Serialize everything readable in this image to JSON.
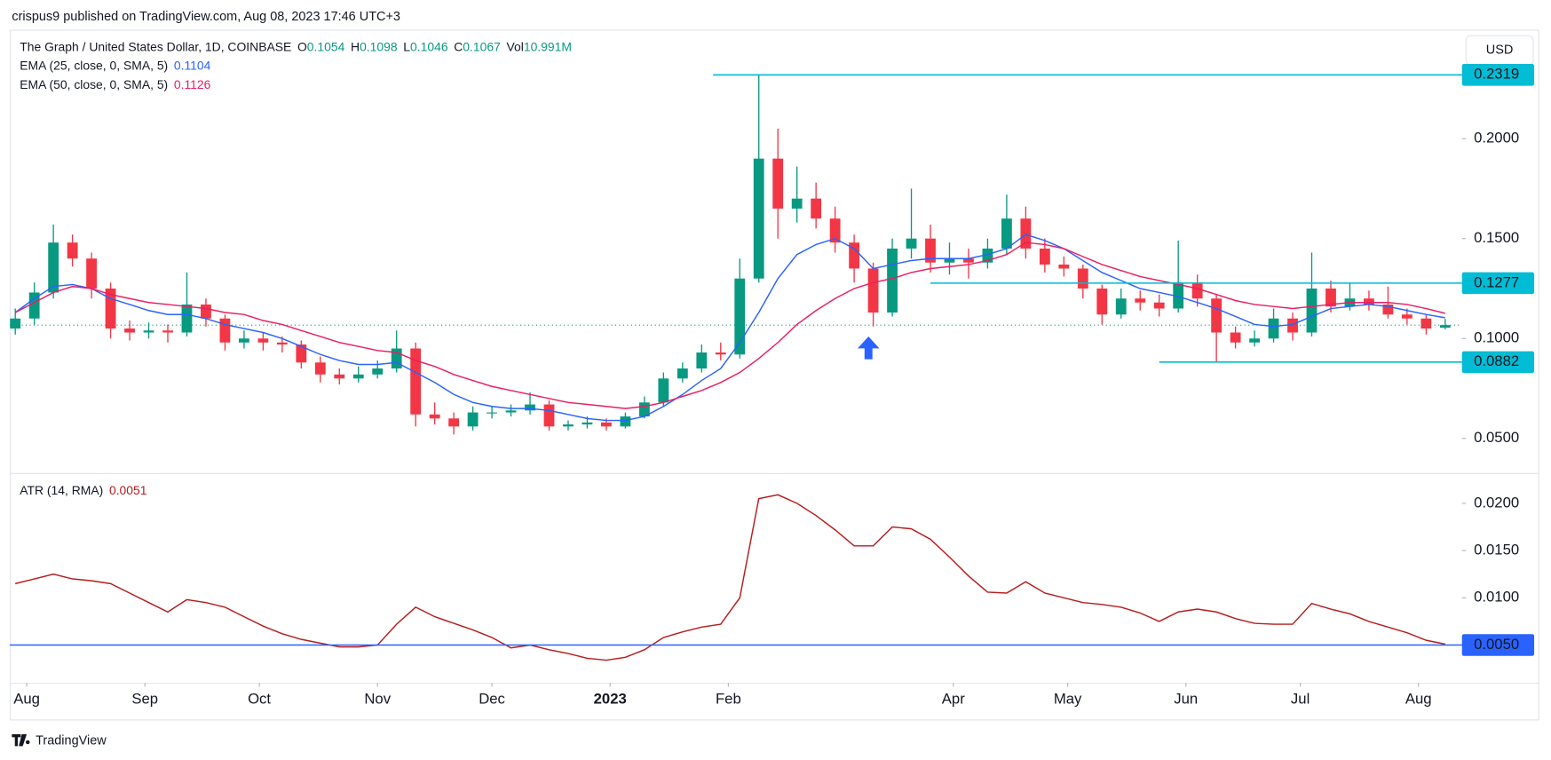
{
  "header": {
    "published": "crispus9 published on TradingView.com, Aug 08, 2023 17:46 UTC+3",
    "currency": "USD"
  },
  "footer": {
    "brand": "TradingView"
  },
  "chart_data": [
    {
      "type": "candlestick",
      "title": "The Graph / United States Dollar, 1D, COINBASE",
      "ohlc_labels": [
        "O",
        "H",
        "L",
        "C",
        "Vol"
      ],
      "volume": "10.991M",
      "up_color": "#089981",
      "down_color": "#f23645",
      "x": [
        -3,
        2,
        7,
        12,
        17,
        22,
        27,
        32,
        37,
        42,
        47,
        52,
        57,
        62,
        67,
        72,
        77,
        82,
        87,
        92,
        97,
        102,
        107,
        112,
        117,
        122,
        127,
        132,
        137,
        142,
        147,
        152,
        157,
        162,
        167,
        172,
        177,
        182,
        187,
        192,
        197,
        202,
        207,
        212,
        217,
        222,
        227,
        232,
        237,
        242,
        247,
        252,
        257,
        262,
        267,
        272,
        277,
        282,
        287,
        292,
        297,
        302,
        307,
        312,
        317,
        322,
        327,
        332,
        337,
        342,
        347,
        352,
        357,
        362,
        367,
        372
      ],
      "open": [
        0.105,
        0.11,
        0.123,
        0.148,
        0.14,
        0.125,
        0.105,
        0.103,
        0.104,
        0.103,
        0.117,
        0.11,
        0.098,
        0.1,
        0.098,
        0.097,
        0.088,
        0.082,
        0.08,
        0.082,
        0.085,
        0.095,
        0.062,
        0.06,
        0.056,
        0.063,
        0.063,
        0.064,
        0.067,
        0.056,
        0.057,
        0.058,
        0.056,
        0.061,
        0.068,
        0.08,
        0.085,
        0.093,
        0.092,
        0.13,
        0.19,
        0.165,
        0.17,
        0.16,
        0.148,
        0.135,
        0.113,
        0.145,
        0.15,
        0.138,
        0.14,
        0.138,
        0.145,
        0.16,
        0.145,
        0.137,
        0.135,
        0.125,
        0.112,
        0.12,
        0.118,
        0.115,
        0.128,
        0.12,
        0.103,
        0.098,
        0.1,
        0.11,
        0.103,
        0.125,
        0.116,
        0.12,
        0.117,
        0.112,
        0.11,
        0.1054
      ],
      "high": [
        0.115,
        0.128,
        0.157,
        0.152,
        0.143,
        0.128,
        0.109,
        0.108,
        0.107,
        0.133,
        0.12,
        0.112,
        0.104,
        0.103,
        0.101,
        0.099,
        0.091,
        0.085,
        0.086,
        0.089,
        0.104,
        0.098,
        0.068,
        0.063,
        0.066,
        0.066,
        0.067,
        0.073,
        0.069,
        0.059,
        0.061,
        0.06,
        0.063,
        0.071,
        0.083,
        0.088,
        0.097,
        0.098,
        0.14,
        0.2319,
        0.205,
        0.186,
        0.178,
        0.166,
        0.152,
        0.138,
        0.15,
        0.175,
        0.157,
        0.148,
        0.145,
        0.15,
        0.172,
        0.166,
        0.15,
        0.141,
        0.137,
        0.127,
        0.125,
        0.124,
        0.122,
        0.149,
        0.132,
        0.122,
        0.106,
        0.104,
        0.115,
        0.113,
        0.143,
        0.129,
        0.128,
        0.124,
        0.126,
        0.115,
        0.112,
        0.1098
      ],
      "low": [
        0.102,
        0.107,
        0.12,
        0.136,
        0.12,
        0.1,
        0.099,
        0.1,
        0.098,
        0.101,
        0.106,
        0.094,
        0.095,
        0.094,
        0.093,
        0.085,
        0.078,
        0.077,
        0.078,
        0.08,
        0.083,
        0.056,
        0.057,
        0.052,
        0.054,
        0.06,
        0.061,
        0.062,
        0.054,
        0.054,
        0.055,
        0.054,
        0.055,
        0.06,
        0.066,
        0.078,
        0.083,
        0.089,
        0.09,
        0.128,
        0.15,
        0.158,
        0.155,
        0.143,
        0.128,
        0.106,
        0.111,
        0.14,
        0.133,
        0.132,
        0.13,
        0.135,
        0.142,
        0.14,
        0.133,
        0.131,
        0.12,
        0.107,
        0.11,
        0.114,
        0.111,
        0.113,
        0.116,
        0.0882,
        0.095,
        0.096,
        0.098,
        0.099,
        0.101,
        0.113,
        0.114,
        0.114,
        0.11,
        0.107,
        0.102,
        0.1046
      ],
      "close": [
        0.11,
        0.123,
        0.148,
        0.14,
        0.125,
        0.105,
        0.103,
        0.104,
        0.103,
        0.117,
        0.11,
        0.098,
        0.1,
        0.098,
        0.097,
        0.088,
        0.082,
        0.08,
        0.082,
        0.085,
        0.095,
        0.062,
        0.06,
        0.056,
        0.063,
        0.063,
        0.064,
        0.067,
        0.056,
        0.057,
        0.058,
        0.056,
        0.061,
        0.068,
        0.08,
        0.085,
        0.093,
        0.092,
        0.13,
        0.19,
        0.165,
        0.17,
        0.16,
        0.148,
        0.135,
        0.113,
        0.145,
        0.15,
        0.138,
        0.14,
        0.138,
        0.145,
        0.16,
        0.145,
        0.137,
        0.135,
        0.125,
        0.112,
        0.12,
        0.118,
        0.115,
        0.128,
        0.12,
        0.103,
        0.098,
        0.1,
        0.11,
        0.103,
        0.125,
        0.116,
        0.12,
        0.117,
        0.112,
        0.11,
        0.105,
        0.1067
      ],
      "series": [
        {
          "name": "EMA (25, close, 0, SMA, 5)",
          "color": "#2962ff",
          "values": [
            0.113,
            0.12,
            0.126,
            0.127,
            0.125,
            0.12,
            0.117,
            0.114,
            0.112,
            0.112,
            0.11,
            0.107,
            0.105,
            0.103,
            0.1,
            0.096,
            0.092,
            0.089,
            0.087,
            0.087,
            0.088,
            0.083,
            0.078,
            0.072,
            0.068,
            0.066,
            0.065,
            0.065,
            0.064,
            0.062,
            0.06,
            0.059,
            0.059,
            0.061,
            0.066,
            0.072,
            0.079,
            0.085,
            0.098,
            0.113,
            0.13,
            0.142,
            0.147,
            0.15,
            0.145,
            0.135,
            0.137,
            0.139,
            0.14,
            0.14,
            0.14,
            0.142,
            0.145,
            0.152,
            0.149,
            0.145,
            0.139,
            0.133,
            0.129,
            0.125,
            0.123,
            0.121,
            0.118,
            0.115,
            0.111,
            0.107,
            0.106,
            0.107,
            0.111,
            0.115,
            0.116,
            0.117,
            0.116,
            0.114,
            0.112,
            0.1104
          ]
        },
        {
          "name": "EMA (50, close, 0, SMA, 5)",
          "color": "#e91e63",
          "values": [
            0.113,
            0.118,
            0.123,
            0.126,
            0.125,
            0.122,
            0.12,
            0.118,
            0.117,
            0.116,
            0.115,
            0.113,
            0.112,
            0.109,
            0.107,
            0.104,
            0.101,
            0.098,
            0.096,
            0.094,
            0.093,
            0.089,
            0.086,
            0.082,
            0.079,
            0.076,
            0.074,
            0.072,
            0.07,
            0.068,
            0.067,
            0.066,
            0.065,
            0.066,
            0.068,
            0.071,
            0.074,
            0.078,
            0.083,
            0.09,
            0.098,
            0.107,
            0.114,
            0.12,
            0.125,
            0.128,
            0.13,
            0.133,
            0.135,
            0.136,
            0.137,
            0.139,
            0.142,
            0.148,
            0.147,
            0.145,
            0.141,
            0.137,
            0.134,
            0.131,
            0.129,
            0.127,
            0.125,
            0.122,
            0.119,
            0.117,
            0.116,
            0.115,
            0.116,
            0.117,
            0.118,
            0.118,
            0.118,
            0.117,
            0.115,
            0.1126
          ]
        }
      ],
      "xlim": [
        -4.41,
        376.4
      ],
      "xticks": [
        {
          "value": 0,
          "label": "Aug"
        },
        {
          "value": 31,
          "label": "Sep"
        },
        {
          "value": 61,
          "label": "Oct"
        },
        {
          "value": 92,
          "label": "Nov"
        },
        {
          "value": 122,
          "label": "Dec"
        },
        {
          "value": 153,
          "label": "2023"
        },
        {
          "value": 184,
          "label": "Feb"
        },
        {
          "value": 243,
          "label": "Apr"
        },
        {
          "value": 273,
          "label": "May"
        },
        {
          "value": 304,
          "label": "Jun"
        },
        {
          "value": 334,
          "label": "Jul"
        },
        {
          "value": 365,
          "label": "Aug"
        }
      ],
      "ylim": [
        0.0327,
        0.2545
      ],
      "yticks": [
        {
          "value": 0.2,
          "label": "0.2000"
        },
        {
          "value": 0.15,
          "label": "0.1500"
        },
        {
          "value": 0.1,
          "label": "0.1000"
        },
        {
          "value": 0.05,
          "label": "0.0500"
        }
      ],
      "hlines": [
        {
          "value": 0.2319,
          "x_start": 180,
          "color": "#00bcd4"
        },
        {
          "value": 0.1277,
          "x_start": 237,
          "color": "#00bcd4"
        },
        {
          "value": 0.0882,
          "x_start": 297,
          "color": "#00bcd4"
        }
      ]
    },
    {
      "type": "line",
      "series": [
        {
          "name": "ATR (14, RMA)",
          "color": "#b71c1c",
          "values": [
            0.0115,
            0.012,
            0.0125,
            0.012,
            0.0118,
            0.0115,
            0.0105,
            0.0095,
            0.0085,
            0.0098,
            0.0095,
            0.009,
            0.008,
            0.007,
            0.0062,
            0.0056,
            0.0052,
            0.0048,
            0.0048,
            0.005,
            0.0072,
            0.009,
            0.008,
            0.0073,
            0.0066,
            0.0058,
            0.0047,
            0.005,
            0.0045,
            0.0041,
            0.0036,
            0.0034,
            0.0037,
            0.0045,
            0.0058,
            0.0064,
            0.0069,
            0.0072,
            0.01,
            0.0205,
            0.0209,
            0.02,
            0.0187,
            0.0172,
            0.0155,
            0.0155,
            0.0175,
            0.0173,
            0.0162,
            0.0143,
            0.0123,
            0.0106,
            0.0105,
            0.0117,
            0.0105,
            0.01,
            0.0095,
            0.0093,
            0.009,
            0.0084,
            0.0075,
            0.0085,
            0.0088,
            0.0085,
            0.0078,
            0.0073,
            0.0072,
            0.0072,
            0.0094,
            0.0088,
            0.0083,
            0.0075,
            0.0069,
            0.0063,
            0.0055,
            0.0051
          ]
        }
      ],
      "ylim": [
        0.001,
        0.023
      ],
      "yticks": [
        {
          "value": 0.02,
          "label": "0.0200"
        },
        {
          "value": 0.015,
          "label": "0.0150"
        },
        {
          "value": 0.01,
          "label": "0.0100"
        }
      ],
      "hlines": [
        {
          "value": 0.005,
          "label": "0.0050",
          "color": "#2962ff"
        }
      ]
    }
  ]
}
